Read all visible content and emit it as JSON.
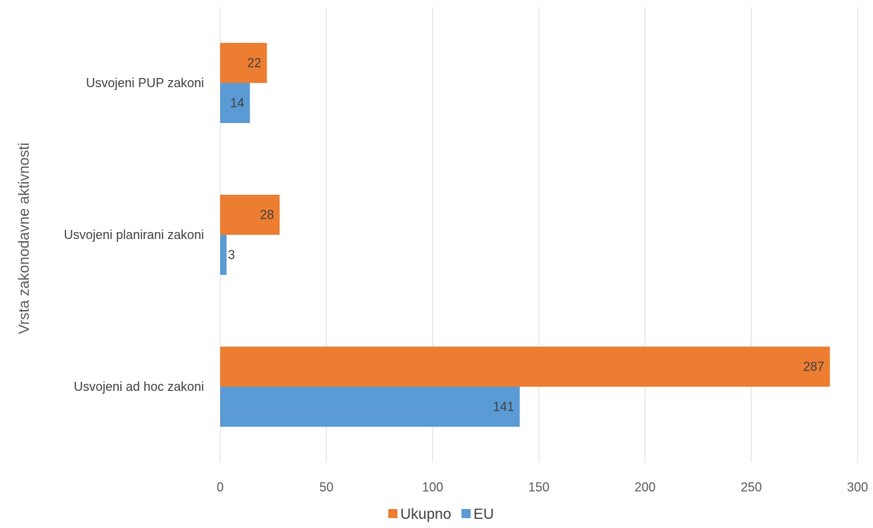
{
  "chart_data": {
    "type": "bar",
    "orientation": "horizontal",
    "categories": [
      "Usvojeni PUP zakoni",
      "Usvojeni planirani zakoni",
      "Usvojeni ad hoc zakoni"
    ],
    "series": [
      {
        "name": "Ukupno",
        "color": "#ed7d31",
        "values": [
          22,
          28,
          287
        ]
      },
      {
        "name": "EU",
        "color": "#5b9bd5",
        "values": [
          14,
          3,
          141
        ]
      }
    ],
    "ylabel": "Vrsta zakonodavne aktivnosti",
    "xlabel": "",
    "xlim": [
      0,
      300
    ],
    "xticks": [
      "0",
      "50",
      "100",
      "150",
      "200",
      "250",
      "300"
    ],
    "grid": true,
    "legend": "bottom",
    "data_labels": true
  }
}
